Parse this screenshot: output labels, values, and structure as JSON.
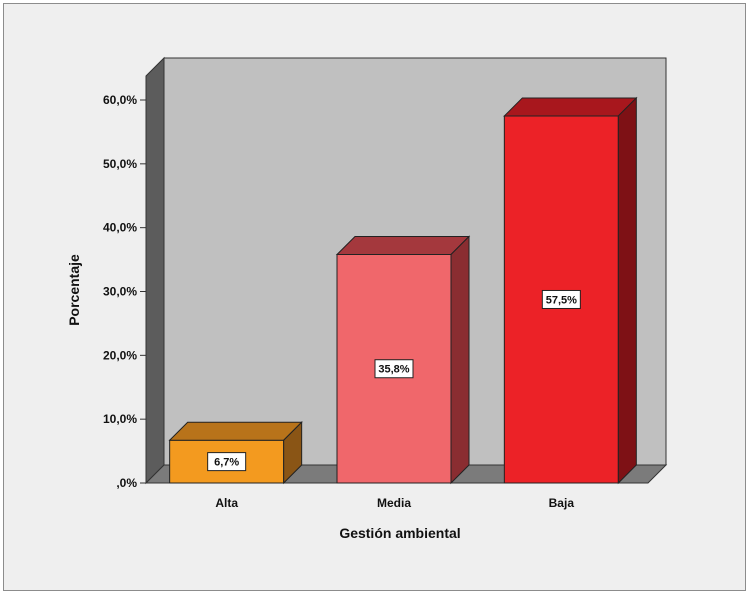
{
  "chart_data": {
    "type": "bar",
    "categories": [
      "Alta",
      "Media",
      "Baja"
    ],
    "values": [
      6.7,
      35.8,
      57.5
    ],
    "data_labels": [
      "6,7%",
      "35,8%",
      "57,5%"
    ],
    "xlabel": "Gestión ambiental",
    "ylabel": "Porcentaje",
    "ylim": [
      0,
      60
    ],
    "yticks": [
      0,
      10,
      20,
      30,
      40,
      50,
      60
    ],
    "ytick_labels": [
      ",0%",
      "10,0%",
      "20,0%",
      "30,0%",
      "40,0%",
      "50,0%",
      "60,0%"
    ],
    "style": "3d",
    "grid": false,
    "legend": "none",
    "colors": {
      "bars": [
        "#f39a1f",
        "#f0676b",
        "#ec2227"
      ],
      "bars_top": [
        "#b8731a",
        "#a4383d",
        "#a8171d"
      ],
      "bars_side": [
        "#8a5515",
        "#8a2d31",
        "#7e1115"
      ],
      "wall": "#c0c0c0",
      "wall_side": "#5c5c5c",
      "floor": "#7b7b7b",
      "frame_bg": "#efefef"
    }
  }
}
